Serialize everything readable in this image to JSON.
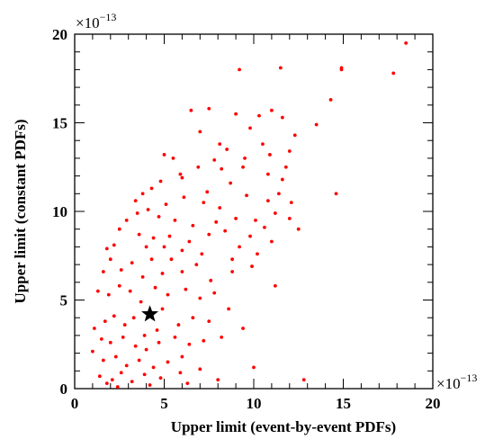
{
  "chart_data": {
    "type": "scatter",
    "title": "",
    "xlabel": "Upper limit (event-by-event PDFs)",
    "ylabel": "Upper limit (constant PDFs)",
    "xlim": [
      0,
      20
    ],
    "ylim": [
      0,
      20
    ],
    "x_ticks": [
      "0",
      "5",
      "10",
      "15",
      "20"
    ],
    "y_ticks": [
      "0",
      "5",
      "10",
      "15",
      "20"
    ],
    "x_multiplier": "×10",
    "x_multiplier_exp": "−13",
    "y_multiplier": "×10",
    "y_multiplier_exp": "−13",
    "grid": false,
    "legend": "none",
    "point_color": "#ff0000",
    "marker_color": "#000000",
    "highlight_point": {
      "x": 4.2,
      "y": 4.2
    },
    "series": [
      {
        "points": [
          [
            18.5,
            19.5
          ],
          [
            17.8,
            17.8
          ],
          [
            14.9,
            18.1
          ],
          [
            14.9,
            18.0
          ],
          [
            11.5,
            18.1
          ],
          [
            9.2,
            18.0
          ],
          [
            14.3,
            16.3
          ],
          [
            13.5,
            14.9
          ],
          [
            14.6,
            11.0
          ],
          [
            12.8,
            0.5
          ],
          [
            11.2,
            5.8
          ],
          [
            10.0,
            1.2
          ],
          [
            9.0,
            15.5
          ],
          [
            8.5,
            13.5
          ],
          [
            7.5,
            15.8
          ],
          [
            6.5,
            15.7
          ],
          [
            7.0,
            14.5
          ],
          [
            9.8,
            14.7
          ],
          [
            10.3,
            15.4
          ],
          [
            11.0,
            15.7
          ],
          [
            11.6,
            15.3
          ],
          [
            12.0,
            13.4
          ],
          [
            12.3,
            14.3
          ],
          [
            10.5,
            13.8
          ],
          [
            5.0,
            13.2
          ],
          [
            5.5,
            13.0
          ],
          [
            6.0,
            11.9
          ],
          [
            4.3,
            11.3
          ],
          [
            3.8,
            11.0
          ],
          [
            8.1,
            13.8
          ],
          [
            9.4,
            12.5
          ],
          [
            10.8,
            12.1
          ],
          [
            11.6,
            11.8
          ],
          [
            12.1,
            10.5
          ],
          [
            12.5,
            9.0
          ],
          [
            11.2,
            9.9
          ],
          [
            10.1,
            9.5
          ],
          [
            9.6,
            10.9
          ],
          [
            8.7,
            11.6
          ],
          [
            7.9,
            9.4
          ],
          [
            7.2,
            10.5
          ],
          [
            6.6,
            9.2
          ],
          [
            6.1,
            10.8
          ],
          [
            5.6,
            9.5
          ],
          [
            5.1,
            10.4
          ],
          [
            4.7,
            9.7
          ],
          [
            4.1,
            10.1
          ],
          [
            3.5,
            9.9
          ],
          [
            2.9,
            9.5
          ],
          [
            3.6,
            8.7
          ],
          [
            4.4,
            8.5
          ],
          [
            5.3,
            8.6
          ],
          [
            6.4,
            8.3
          ],
          [
            7.1,
            7.6
          ],
          [
            8.4,
            8.9
          ],
          [
            9.2,
            8.0
          ],
          [
            10.2,
            7.6
          ],
          [
            11.0,
            8.3
          ],
          [
            9.9,
            6.9
          ],
          [
            8.8,
            6.6
          ],
          [
            7.6,
            6.1
          ],
          [
            6.8,
            7.0
          ],
          [
            6.0,
            6.6
          ],
          [
            5.4,
            7.3
          ],
          [
            4.9,
            6.5
          ],
          [
            4.3,
            7.3
          ],
          [
            3.8,
            6.3
          ],
          [
            3.2,
            7.1
          ],
          [
            2.6,
            6.7
          ],
          [
            2.0,
            7.3
          ],
          [
            1.6,
            6.6
          ],
          [
            1.3,
            5.5
          ],
          [
            1.9,
            5.3
          ],
          [
            2.5,
            5.8
          ],
          [
            3.1,
            5.5
          ],
          [
            3.7,
            4.9
          ],
          [
            4.5,
            5.7
          ],
          [
            5.2,
            5.3
          ],
          [
            6.2,
            5.6
          ],
          [
            7.0,
            5.1
          ],
          [
            7.8,
            5.4
          ],
          [
            8.6,
            4.5
          ],
          [
            9.4,
            3.4
          ],
          [
            7.5,
            3.8
          ],
          [
            6.6,
            4.0
          ],
          [
            5.8,
            3.6
          ],
          [
            4.9,
            4.5
          ],
          [
            4.6,
            3.3
          ],
          [
            3.9,
            3.0
          ],
          [
            3.3,
            4.0
          ],
          [
            2.8,
            3.6
          ],
          [
            2.2,
            4.1
          ],
          [
            1.7,
            3.8
          ],
          [
            1.1,
            3.4
          ],
          [
            1.5,
            2.8
          ],
          [
            2.0,
            2.6
          ],
          [
            2.7,
            2.9
          ],
          [
            3.4,
            2.4
          ],
          [
            4.0,
            2.2
          ],
          [
            4.7,
            2.6
          ],
          [
            5.6,
            2.9
          ],
          [
            6.4,
            2.5
          ],
          [
            7.2,
            2.7
          ],
          [
            8.2,
            2.9
          ],
          [
            6.0,
            1.8
          ],
          [
            5.2,
            1.5
          ],
          [
            4.4,
            1.2
          ],
          [
            3.6,
            1.6
          ],
          [
            2.9,
            1.3
          ],
          [
            2.3,
            1.8
          ],
          [
            1.6,
            1.6
          ],
          [
            1.0,
            2.1
          ],
          [
            1.4,
            0.7
          ],
          [
            2.1,
            0.5
          ],
          [
            2.6,
            0.9
          ],
          [
            3.2,
            0.4
          ],
          [
            3.9,
            0.8
          ],
          [
            4.8,
            0.6
          ],
          [
            5.9,
            0.9
          ],
          [
            7.0,
            1.1
          ],
          [
            6.3,
            0.3
          ],
          [
            4.2,
            0.2
          ],
          [
            2.4,
            0.1
          ],
          [
            1.8,
            0.3
          ],
          [
            8.0,
            0.5
          ],
          [
            10.8,
            10.6
          ],
          [
            11.4,
            11.0
          ],
          [
            9.0,
            9.6
          ],
          [
            8.1,
            10.2
          ],
          [
            7.4,
            11.1
          ],
          [
            6.9,
            12.5
          ],
          [
            5.9,
            12.1
          ],
          [
            4.8,
            11.7
          ],
          [
            3.4,
            10.6
          ],
          [
            2.5,
            9.0
          ],
          [
            2.2,
            8.1
          ],
          [
            1.8,
            7.9
          ],
          [
            4.0,
            8.0
          ],
          [
            5.0,
            8.0
          ],
          [
            6.0,
            7.8
          ],
          [
            7.5,
            8.7
          ],
          [
            8.8,
            7.3
          ],
          [
            9.8,
            8.6
          ],
          [
            10.6,
            9.1
          ],
          [
            12.0,
            9.6
          ],
          [
            11.8,
            12.5
          ],
          [
            10.9,
            13.2
          ],
          [
            9.5,
            13.0
          ],
          [
            8.2,
            12.4
          ],
          [
            7.8,
            12.9
          ]
        ]
      }
    ]
  }
}
